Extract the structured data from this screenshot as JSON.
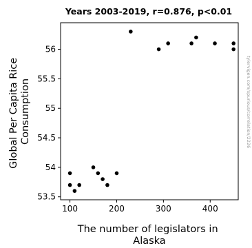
{
  "chart_data": {
    "type": "scatter",
    "title": "Years 2003-2019, r=0.876, p<0.01",
    "xlabel": [
      "The number of legislators in",
      "Alaska"
    ],
    "ylabel": [
      "Global Per Capita Rice",
      "Consumption"
    ],
    "xlim": [
      80,
      460
    ],
    "ylim": [
      53.45,
      56.45
    ],
    "xticks": [
      100,
      200,
      300,
      400
    ],
    "xtick_labels": [
      "100",
      "200",
      "300",
      "400"
    ],
    "yticks": [
      53.5,
      54,
      54.5,
      55,
      55.5,
      56
    ],
    "ytick_labels": [
      "53.5",
      "54",
      "54.5",
      "55",
      "55.5",
      "56"
    ],
    "grid": false,
    "marker_color": "#000000",
    "points": [
      {
        "x": 100,
        "y": 53.9
      },
      {
        "x": 100,
        "y": 53.7
      },
      {
        "x": 110,
        "y": 53.6
      },
      {
        "x": 120,
        "y": 53.7
      },
      {
        "x": 150,
        "y": 54.0
      },
      {
        "x": 160,
        "y": 53.9
      },
      {
        "x": 170,
        "y": 53.8
      },
      {
        "x": 180,
        "y": 53.7
      },
      {
        "x": 200,
        "y": 53.9
      },
      {
        "x": 230,
        "y": 56.3
      },
      {
        "x": 290,
        "y": 56.0
      },
      {
        "x": 310,
        "y": 56.1
      },
      {
        "x": 360,
        "y": 56.1
      },
      {
        "x": 370,
        "y": 56.2
      },
      {
        "x": 410,
        "y": 56.1
      },
      {
        "x": 450,
        "y": 56.1
      },
      {
        "x": 450,
        "y": 56.0
      }
    ]
  },
  "watermark": "tylervigen.com/spurious/correlation/2226"
}
